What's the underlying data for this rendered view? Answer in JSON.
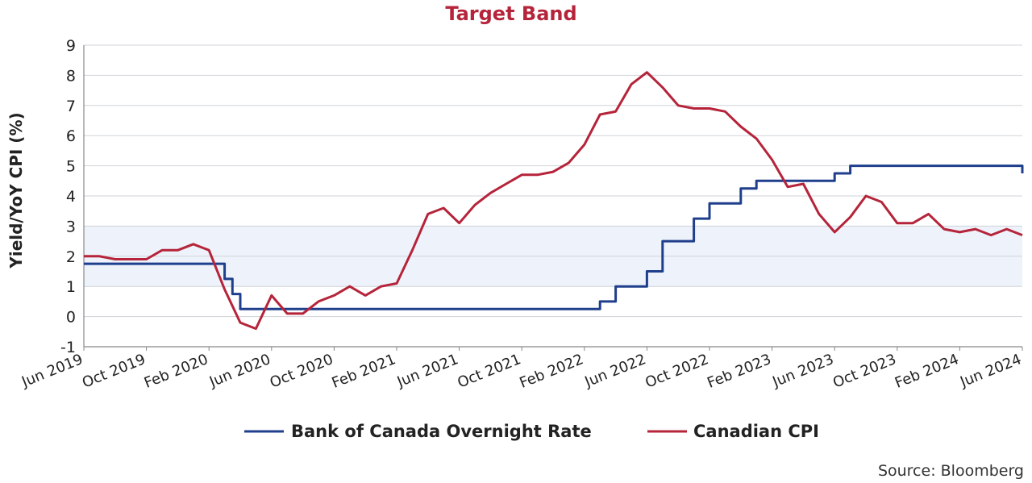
{
  "chart_data": {
    "type": "line",
    "title": "Target Band",
    "ylabel": "Yield/YoY CPI (%)",
    "xlabel": "",
    "ylim": [
      -1,
      9
    ],
    "yticks": [
      "-1",
      "0",
      "1",
      "2",
      "3",
      "4",
      "5",
      "6",
      "7",
      "8",
      "9"
    ],
    "x_range": [
      "2019-06",
      "2024-06"
    ],
    "x_ticks": [
      {
        "label": "Jun 2019",
        "date": "2019-06"
      },
      {
        "label": "Oct 2019",
        "date": "2019-10"
      },
      {
        "label": "Feb 2020",
        "date": "2020-02"
      },
      {
        "label": "Jun 2020",
        "date": "2020-06"
      },
      {
        "label": "Oct 2020",
        "date": "2020-10"
      },
      {
        "label": "Feb 2021",
        "date": "2021-02"
      },
      {
        "label": "Jun 2021",
        "date": "2021-06"
      },
      {
        "label": "Oct 2021",
        "date": "2021-10"
      },
      {
        "label": "Feb 2022",
        "date": "2022-02"
      },
      {
        "label": "Jun 2022",
        "date": "2022-06"
      },
      {
        "label": "Oct 2022",
        "date": "2022-10"
      },
      {
        "label": "Feb 2023",
        "date": "2023-02"
      },
      {
        "label": "Jun 2023",
        "date": "2023-06"
      },
      {
        "label": "Oct 2023",
        "date": "2023-10"
      },
      {
        "label": "Feb 2024",
        "date": "2024-02"
      },
      {
        "label": "Jun 2024",
        "date": "2024-06"
      }
    ],
    "grid": "horizontal",
    "target_band": {
      "from": 1,
      "to": 3,
      "color": "#eef3fb"
    },
    "legend_position": "bottom",
    "series": [
      {
        "name": "Bank of Canada Overnight Rate",
        "color": "#1f3f8c",
        "step": true,
        "x": [
          "2019-06",
          "2020-03",
          "2020-03.5",
          "2020-04",
          "2022-03",
          "2022-04",
          "2022-06",
          "2022-07",
          "2022-09",
          "2022-10",
          "2022-12",
          "2023-01",
          "2023-06",
          "2023-07",
          "2024-06"
        ],
        "values": [
          1.75,
          1.25,
          0.75,
          0.25,
          0.5,
          1.0,
          1.5,
          2.5,
          3.25,
          3.75,
          4.25,
          4.5,
          4.75,
          5.0,
          4.75
        ]
      },
      {
        "name": "Canadian CPI",
        "color": "#b5243a",
        "step": false,
        "x": [
          "2019-06",
          "2019-07",
          "2019-08",
          "2019-09",
          "2019-10",
          "2019-11",
          "2019-12",
          "2020-01",
          "2020-02",
          "2020-03",
          "2020-04",
          "2020-05",
          "2020-06",
          "2020-07",
          "2020-08",
          "2020-09",
          "2020-10",
          "2020-11",
          "2020-12",
          "2021-01",
          "2021-02",
          "2021-03",
          "2021-04",
          "2021-05",
          "2021-06",
          "2021-07",
          "2021-08",
          "2021-09",
          "2021-10",
          "2021-11",
          "2021-12",
          "2022-01",
          "2022-02",
          "2022-03",
          "2022-04",
          "2022-05",
          "2022-06",
          "2022-07",
          "2022-08",
          "2022-09",
          "2022-10",
          "2022-11",
          "2022-12",
          "2023-01",
          "2023-02",
          "2023-03",
          "2023-04",
          "2023-05",
          "2023-06",
          "2023-07",
          "2023-08",
          "2023-09",
          "2023-10",
          "2023-11",
          "2023-12",
          "2024-01",
          "2024-02",
          "2024-03",
          "2024-04",
          "2024-05",
          "2024-06"
        ],
        "values": [
          2.0,
          2.0,
          1.9,
          1.9,
          1.9,
          2.2,
          2.2,
          2.4,
          2.2,
          0.9,
          -0.2,
          -0.4,
          0.7,
          0.1,
          0.1,
          0.5,
          0.7,
          1.0,
          0.7,
          1.0,
          1.1,
          2.2,
          3.4,
          3.6,
          3.1,
          3.7,
          4.1,
          4.4,
          4.7,
          4.7,
          4.8,
          5.1,
          5.7,
          6.7,
          6.8,
          7.7,
          8.1,
          7.6,
          7.0,
          6.9,
          6.9,
          6.8,
          6.3,
          5.9,
          5.2,
          4.3,
          4.4,
          3.4,
          2.8,
          3.3,
          4.0,
          3.8,
          3.1,
          3.1,
          3.4,
          2.9,
          2.8,
          2.9,
          2.7,
          2.9,
          2.7
        ]
      }
    ],
    "source": "Source: Bloomberg"
  }
}
